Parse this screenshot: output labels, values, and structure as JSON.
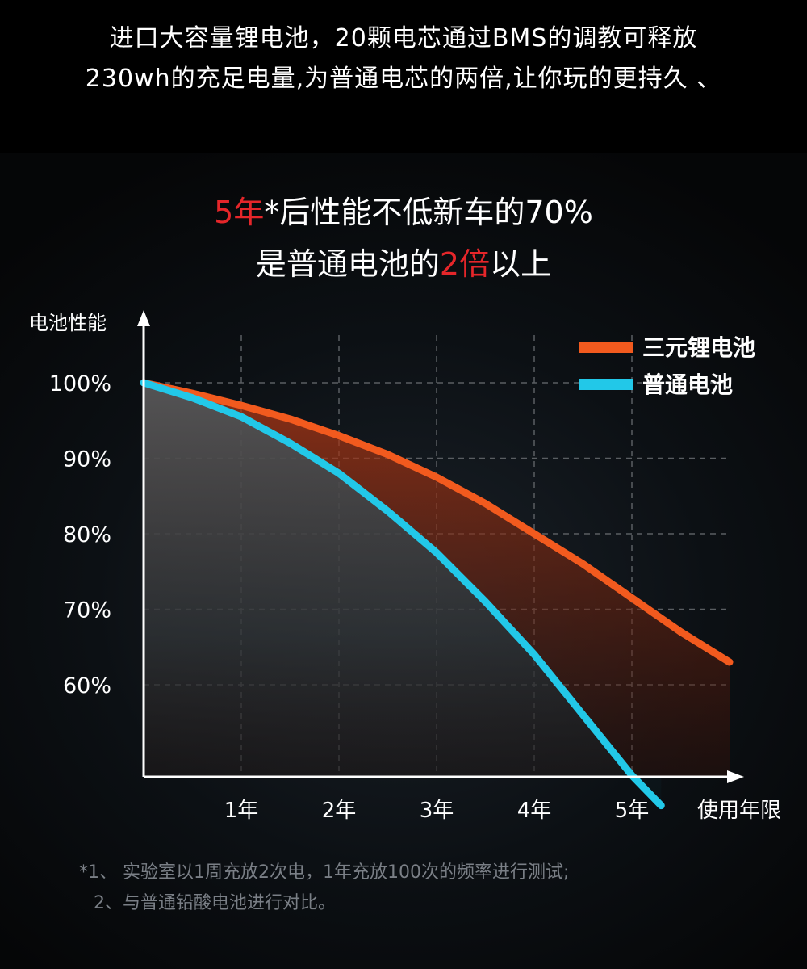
{
  "intro": {
    "line1": "进口大容量锂电池，20颗电芯通过BMS的调教可释放",
    "line2": "230wh的充足电量,为普通电芯的两倍,让你玩的更持久  、"
  },
  "headline": {
    "line1_accent": "5年",
    "line1_rest": "*后性能不低新车的70%",
    "line2_start": "是普通电池的",
    "line2_accent": "2倍",
    "line2_end": "以上"
  },
  "colors": {
    "accent_red": "#e5262a",
    "lithium": "#f25a1e",
    "regular": "#22c8e8",
    "grid": "#5a5e62"
  },
  "chart_data": {
    "type": "area",
    "ylabel": "电池性能",
    "xlabel": "使用年限",
    "x_ticks": [
      "1年",
      "2年",
      "3年",
      "4年",
      "5年"
    ],
    "y_ticks": [
      "100%",
      "90%",
      "80%",
      "70%",
      "60%"
    ],
    "x_range": [
      0,
      6.2
    ],
    "y_range": [
      50,
      103
    ],
    "grid": true,
    "legend_position": "top-right",
    "series": [
      {
        "name": "三元锂电池",
        "color": "#f25a1e",
        "x": [
          0,
          0.5,
          1,
          1.5,
          2,
          2.5,
          3,
          3.5,
          4,
          4.5,
          5,
          5.5,
          6
        ],
        "y": [
          100,
          98.6,
          97,
          95.2,
          93,
          90.5,
          87.5,
          84,
          80,
          76,
          71.5,
          67,
          63
        ]
      },
      {
        "name": "普通电池",
        "color": "#22c8e8",
        "x": [
          0,
          0.5,
          1,
          1.5,
          2,
          2.5,
          3,
          3.5,
          4,
          4.5,
          5,
          5.3
        ],
        "y": [
          100,
          98,
          95.5,
          92,
          88,
          83,
          77.5,
          71,
          64,
          56,
          48,
          44
        ]
      }
    ]
  },
  "footnotes": {
    "line1": "*1、 实验室以1周充放2次电，1年充放100次的频率进行测试;",
    "line2": "2、与普通铅酸电池进行对比。"
  }
}
